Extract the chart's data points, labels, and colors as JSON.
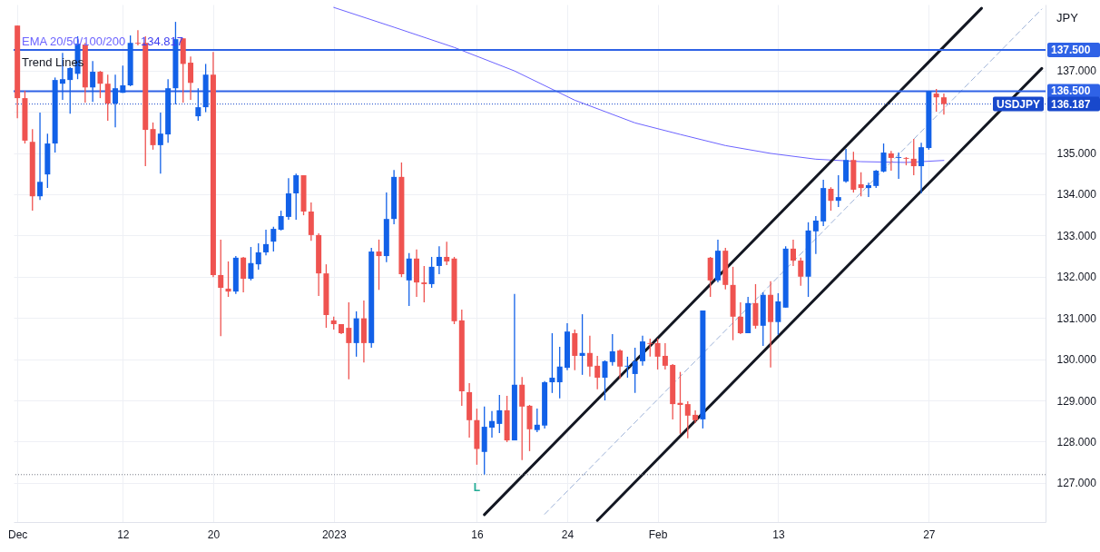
{
  "chart_data": {
    "type": "candlestick",
    "categories": [
      "Dec",
      null,
      null,
      null,
      null,
      null,
      null,
      null,
      null,
      null,
      null,
      null,
      null,
      null,
      "12",
      null,
      null,
      null,
      null,
      null,
      null,
      null,
      null,
      null,
      null,
      null,
      "20",
      null,
      null,
      null,
      null,
      null,
      null,
      null,
      null,
      null,
      null,
      null,
      null,
      null,
      null,
      null,
      "2023",
      null,
      null,
      null,
      null,
      null,
      null,
      null,
      null,
      null,
      null,
      null,
      null,
      null,
      null,
      null,
      null,
      null,
      null,
      "16",
      null,
      null,
      null,
      null,
      null,
      null,
      null,
      null,
      null,
      null,
      null,
      "24",
      null,
      null,
      null,
      null,
      null,
      null,
      null,
      null,
      null,
      null,
      null,
      "Feb",
      null,
      null,
      null,
      null,
      null,
      null,
      null,
      null,
      null,
      null,
      null,
      null,
      null,
      null,
      null,
      "13",
      null,
      null,
      null,
      null,
      null,
      null,
      null,
      null,
      null,
      null,
      null,
      null,
      null,
      null,
      null,
      null,
      null,
      null,
      null,
      "27",
      null,
      null,
      null,
      null,
      null,
      null,
      null,
      null,
      null,
      null,
      null,
      null,
      null,
      null,
      null
    ],
    "ohlc": [
      [
        138.09,
        138.09,
        135.84,
        136.33
      ],
      [
        136.33,
        136.51,
        135.23,
        135.3
      ],
      [
        135.27,
        135.58,
        133.6,
        133.95
      ],
      [
        133.95,
        135.98,
        133.86,
        134.3
      ],
      [
        134.48,
        135.47,
        134.15,
        135.23
      ],
      [
        135.23,
        136.83,
        135.01,
        136.77
      ],
      [
        136.68,
        137.43,
        136.29,
        136.79
      ],
      [
        136.77,
        137.08,
        135.95,
        137.06
      ],
      [
        136.92,
        137.83,
        136.79,
        137.65
      ],
      [
        137.63,
        137.67,
        136.22,
        136.59
      ],
      [
        136.59,
        137.23,
        136.24,
        136.97
      ],
      [
        136.97,
        136.99,
        136.33,
        136.68
      ],
      [
        136.68,
        136.9,
        135.78,
        136.2
      ],
      [
        136.2,
        136.9,
        135.62,
        136.57
      ],
      [
        136.46,
        137.12,
        136.46,
        136.64
      ],
      [
        136.64,
        137.85,
        136.62,
        137.67
      ],
      [
        137.67,
        137.98,
        137.61,
        137.65
      ],
      [
        137.67,
        137.83,
        134.68,
        135.56
      ],
      [
        135.58,
        135.74,
        135.08,
        135.19
      ],
      [
        135.19,
        135.98,
        134.5,
        135.47
      ],
      [
        135.45,
        136.79,
        135.25,
        136.57
      ],
      [
        136.57,
        138.18,
        136.18,
        137.76
      ],
      [
        137.78,
        137.78,
        136.22,
        137.16
      ],
      [
        137.19,
        137.34,
        136.29,
        136.7
      ],
      [
        135.89,
        136.57,
        135.78,
        136.11
      ],
      [
        136.11,
        137.16,
        135.99,
        136.9
      ],
      [
        136.9,
        137.45,
        131.99,
        132.04
      ],
      [
        132.04,
        132.9,
        130.56,
        131.73
      ],
      [
        131.71,
        132.37,
        131.51,
        131.64
      ],
      [
        131.64,
        132.5,
        131.58,
        132.46
      ],
      [
        132.46,
        132.48,
        131.62,
        131.95
      ],
      [
        131.95,
        132.72,
        131.91,
        132.33
      ],
      [
        132.3,
        132.81,
        132.17,
        132.59
      ],
      [
        132.59,
        133.14,
        132.52,
        132.79
      ],
      [
        132.85,
        133.21,
        132.61,
        133.16
      ],
      [
        133.14,
        133.6,
        133.12,
        133.47
      ],
      [
        133.45,
        134.39,
        133.38,
        134.02
      ],
      [
        134.02,
        134.5,
        133.38,
        134.46
      ],
      [
        134.46,
        134.46,
        133.49,
        133.58
      ],
      [
        133.58,
        133.8,
        132.87,
        133.01
      ],
      [
        133.01,
        133.05,
        131.53,
        132.08
      ],
      [
        132.08,
        132.3,
        130.76,
        131.07
      ],
      [
        130.94,
        131.03,
        130.72,
        130.85
      ],
      [
        130.85,
        130.85,
        130.61,
        130.63
      ],
      [
        130.76,
        131.38,
        129.51,
        130.39
      ],
      [
        130.39,
        131.16,
        130.06,
        130.99
      ],
      [
        130.99,
        131.42,
        129.92,
        130.39
      ],
      [
        130.39,
        132.7,
        130.28,
        132.61
      ],
      [
        132.61,
        132.9,
        131.68,
        132.5
      ],
      [
        132.5,
        134.04,
        132.35,
        133.4
      ],
      [
        133.4,
        134.59,
        133.27,
        134.42
      ],
      [
        134.42,
        134.77,
        131.99,
        132.06
      ],
      [
        131.91,
        132.57,
        131.29,
        132.44
      ],
      [
        132.44,
        132.66,
        131.51,
        131.86
      ],
      [
        131.86,
        132.26,
        131.38,
        131.82
      ],
      [
        131.82,
        132.48,
        131.73,
        132.24
      ],
      [
        132.26,
        132.74,
        132.06,
        132.48
      ],
      [
        132.48,
        132.85,
        132.28,
        132.37
      ],
      [
        132.44,
        132.48,
        130.85,
        130.92
      ],
      [
        130.94,
        131.2,
        128.87,
        129.22
      ],
      [
        129.2,
        129.42,
        128.1,
        128.52
      ],
      [
        128.52,
        128.8,
        127.44,
        127.82
      ],
      [
        127.75,
        128.85,
        127.2,
        128.36
      ],
      [
        128.34,
        128.74,
        128.1,
        128.5
      ],
      [
        128.43,
        129.13,
        128.21,
        128.76
      ],
      [
        128.76,
        129.11,
        127.99,
        128.03
      ],
      [
        128.03,
        131.58,
        128.03,
        129.38
      ],
      [
        129.38,
        129.57,
        127.55,
        128.85
      ],
      [
        128.87,
        128.89,
        127.77,
        128.3
      ],
      [
        128.28,
        128.8,
        128.23,
        128.41
      ],
      [
        128.39,
        129.47,
        128.32,
        129.44
      ],
      [
        129.44,
        130.63,
        129.18,
        129.55
      ],
      [
        129.44,
        130.3,
        129.05,
        129.82
      ],
      [
        129.79,
        130.87,
        129.73,
        130.67
      ],
      [
        130.63,
        130.72,
        129.73,
        130.08
      ],
      [
        130.08,
        131.09,
        129.62,
        130.15
      ],
      [
        130.15,
        130.57,
        129.58,
        129.82
      ],
      [
        129.84,
        130.08,
        129.27,
        129.55
      ],
      [
        129.55,
        129.97,
        129.0,
        129.95
      ],
      [
        129.93,
        130.61,
        129.84,
        130.19
      ],
      [
        130.21,
        130.24,
        129.53,
        129.82
      ],
      [
        129.82,
        130.06,
        129.55,
        129.84
      ],
      [
        129.64,
        130.28,
        129.18,
        129.95
      ],
      [
        129.95,
        130.57,
        129.84,
        130.43
      ],
      [
        130.39,
        130.5,
        130.06,
        130.37
      ],
      [
        130.39,
        130.5,
        129.75,
        130.06
      ],
      [
        130.08,
        130.39,
        129.75,
        129.84
      ],
      [
        129.86,
        129.88,
        128.54,
        128.91
      ],
      [
        128.94,
        129.69,
        128.19,
        128.89
      ],
      [
        128.91,
        128.98,
        128.08,
        128.63
      ],
      [
        128.65,
        128.76,
        128.45,
        128.52
      ],
      [
        128.54,
        131.18,
        128.32,
        131.18
      ],
      [
        132.46,
        132.48,
        131.51,
        131.91
      ],
      [
        131.91,
        132.9,
        131.86,
        132.63
      ],
      [
        132.63,
        132.7,
        131.69,
        131.8
      ],
      [
        131.8,
        132.24,
        130.46,
        131.03
      ],
      [
        131.03,
        131.38,
        130.61,
        130.63
      ],
      [
        130.63,
        131.51,
        130.63,
        131.36
      ],
      [
        131.36,
        131.82,
        130.74,
        130.81
      ],
      [
        130.81,
        131.62,
        130.32,
        131.56
      ],
      [
        131.56,
        131.89,
        129.8,
        130.9
      ],
      [
        130.9,
        131.6,
        130.59,
        131.4
      ],
      [
        131.25,
        132.74,
        131.25,
        132.68
      ],
      [
        132.68,
        132.9,
        132.26,
        132.39
      ],
      [
        132.39,
        132.46,
        131.78,
        132.0
      ],
      [
        132.0,
        133.32,
        131.51,
        133.12
      ],
      [
        133.1,
        133.47,
        132.55,
        133.36
      ],
      [
        133.34,
        134.35,
        133.23,
        134.15
      ],
      [
        134.13,
        134.17,
        133.6,
        133.84
      ],
      [
        133.84,
        134.46,
        133.69,
        133.93
      ],
      [
        134.31,
        135.1,
        134.28,
        134.83
      ],
      [
        134.83,
        135.03,
        134.04,
        134.11
      ],
      [
        134.24,
        134.53,
        133.95,
        134.15
      ],
      [
        134.15,
        134.28,
        133.93,
        134.22
      ],
      [
        134.2,
        134.59,
        134.15,
        134.57
      ],
      [
        134.55,
        135.23,
        134.53,
        135.01
      ],
      [
        134.99,
        135.05,
        134.57,
        134.88
      ],
      [
        134.88,
        135.01,
        134.37,
        134.9
      ],
      [
        134.88,
        134.9,
        134.7,
        134.86
      ],
      [
        134.86,
        135.34,
        134.46,
        134.68
      ],
      [
        134.68,
        135.25,
        134.02,
        135.14
      ],
      [
        135.12,
        136.5,
        135.08,
        136.5
      ],
      [
        136.44,
        136.55,
        136.0,
        136.35
      ],
      [
        136.35,
        136.44,
        135.93,
        136.187
      ],
      null,
      null,
      null,
      null,
      null,
      null,
      null,
      null,
      null,
      null,
      null,
      null,
      null
    ],
    "colors": [
      "#ef5350",
      "#ef5350",
      "#ef5350",
      "#1261e8",
      "#1261e8",
      "#1261e8",
      "#1261e8",
      "#1261e8",
      "#1261e8",
      "#ef5350",
      "#1261e8",
      "#ef5350",
      "#ef5350",
      "#1261e8",
      "#1261e8",
      "#1261e8",
      "#ef5350",
      "#ef5350",
      "#ef5350",
      "#1261e8",
      "#1261e8",
      "#1261e8",
      "#ef5350",
      "#ef5350",
      "#1261e8",
      "#1261e8",
      "#ef5350",
      "#ef5350",
      "#ef5350",
      "#1261e8",
      "#ef5350",
      "#1261e8",
      "#1261e8",
      "#1261e8",
      "#1261e8",
      "#1261e8",
      "#1261e8",
      "#1261e8",
      "#ef5350",
      "#ef5350",
      "#ef5350",
      "#ef5350",
      "#ef5350",
      "#ef5350",
      "#ef5350",
      "#1261e8",
      "#ef5350",
      "#1261e8",
      "#ef5350",
      "#1261e8",
      "#1261e8",
      "#ef5350",
      "#1261e8",
      "#ef5350",
      "#ef5350",
      "#1261e8",
      "#1261e8",
      "#ef5350",
      "#ef5350",
      "#ef5350",
      "#ef5350",
      "#ef5350",
      "#1261e8",
      "#1261e8",
      "#1261e8",
      "#ef5350",
      "#1261e8",
      "#ef5350",
      "#ef5350",
      "#1261e8",
      "#1261e8",
      "#1261e8",
      "#1261e8",
      "#1261e8",
      "#ef5350",
      "#1261e8",
      "#ef5350",
      "#ef5350",
      "#1261e8",
      "#1261e8",
      "#ef5350",
      "#1261e8",
      "#1261e8",
      "#1261e8",
      "#ef5350",
      "#ef5350",
      "#ef5350",
      "#ef5350",
      "#ef5350",
      "#ef5350",
      "#ef5350",
      "#1261e8",
      "#ef5350",
      "#1261e8",
      "#ef5350",
      "#ef5350",
      "#ef5350",
      "#1261e8",
      "#ef5350",
      "#1261e8",
      "#ef5350",
      "#1261e8",
      "#1261e8",
      "#ef5350",
      "#ef5350",
      "#1261e8",
      "#1261e8",
      "#1261e8",
      "#ef5350",
      "#1261e8",
      "#1261e8",
      "#ef5350",
      "#ef5350",
      "#1261e8",
      "#1261e8",
      "#1261e8",
      "#ef5350",
      "#1261e8",
      "#ef5350",
      "#ef5350",
      "#1261e8",
      "#1261e8",
      "#ef5350",
      "#ef5350",
      null,
      null,
      null,
      null,
      null,
      null,
      null,
      null,
      null,
      null,
      null,
      null,
      null
    ],
    "series": [
      {
        "type": "line",
        "name": "EMA 20/50/100/200",
        "color": "#6c63ff",
        "values": [
          null,
          null,
          null,
          null,
          null,
          null,
          null,
          null,
          null,
          null,
          null,
          null,
          null,
          null,
          null,
          null,
          null,
          null,
          null,
          null,
          null,
          null,
          null,
          null,
          null,
          null,
          null,
          null,
          null,
          null,
          null,
          null,
          null,
          null,
          null,
          null,
          null,
          null,
          null,
          null,
          null,
          null,
          138.53,
          null,
          null,
          null,
          null,
          null,
          null,
          null,
          138.05,
          null,
          null,
          null,
          null,
          null,
          null,
          null,
          137.56,
          null,
          null,
          null,
          null,
          null,
          null,
          null,
          136.99,
          null,
          null,
          null,
          null,
          null,
          null,
          null,
          136.28,
          null,
          null,
          null,
          null,
          null,
          null,
          null,
          135.73,
          null,
          null,
          null,
          null,
          null,
          135.45,
          null,
          null,
          null,
          null,
          null,
          135.18,
          null,
          null,
          null,
          null,
          null,
          134.99,
          null,
          null,
          null,
          null,
          null,
          134.85,
          null,
          null,
          null,
          null,
          null,
          134.79,
          null,
          null,
          null,
          null,
          null,
          134.77,
          null,
          null,
          null,
          null,
          134.82,
          null,
          null,
          null,
          null,
          null,
          null,
          null,
          null,
          null,
          null,
          null,
          null,
          null
        ]
      },
      {
        "type": "line",
        "color": "#131722",
        "values": [
          null,
          null,
          null,
          null,
          null,
          null,
          null,
          null,
          null,
          null,
          null,
          null,
          null,
          null,
          null,
          null,
          null,
          null,
          null,
          null,
          null,
          null,
          null,
          null,
          null,
          null,
          null,
          null,
          null,
          null,
          null,
          null,
          null,
          null,
          null,
          null,
          null,
          null,
          null,
          null,
          null,
          null,
          null,
          null,
          null,
          null,
          null,
          null,
          null,
          null,
          null,
          null,
          null,
          null,
          null,
          null,
          null,
          null,
          null,
          null,
          null,
          null,
          126.23,
          null,
          null,
          null,
          null,
          null,
          null,
          null,
          null,
          null,
          null,
          null,
          null,
          null,
          null,
          null,
          null,
          null,
          null,
          null,
          null,
          null,
          null,
          null,
          null,
          null,
          null,
          null,
          null,
          null,
          null,
          null,
          null,
          null,
          null,
          null,
          null,
          null,
          null,
          null,
          null,
          null,
          null,
          null,
          null,
          null,
          null,
          null,
          null,
          null,
          null,
          null,
          null,
          null,
          null,
          null,
          null,
          null,
          null,
          null,
          null,
          null,
          null,
          null,
          null,
          null,
          138.51,
          null,
          null,
          null,
          null,
          null,
          null,
          null,
          null
        ]
      },
      {
        "type": "line",
        "color": "#9db2d8",
        "line_style": "dashed",
        "values": [
          null,
          null,
          null,
          null,
          null,
          null,
          null,
          null,
          null,
          null,
          null,
          null,
          null,
          null,
          null,
          null,
          null,
          null,
          null,
          null,
          null,
          null,
          null,
          null,
          null,
          null,
          null,
          null,
          null,
          null,
          null,
          null,
          null,
          null,
          null,
          null,
          null,
          null,
          null,
          null,
          null,
          null,
          null,
          null,
          null,
          null,
          null,
          null,
          null,
          null,
          null,
          null,
          null,
          null,
          null,
          null,
          null,
          null,
          null,
          null,
          null,
          null,
          null,
          null,
          null,
          null,
          null,
          null,
          null,
          null,
          126.24,
          null,
          null,
          null,
          null,
          null,
          null,
          null,
          null,
          null,
          null,
          null,
          null,
          null,
          null,
          null,
          null,
          null,
          null,
          null,
          null,
          null,
          null,
          null,
          null,
          null,
          null,
          null,
          null,
          null,
          null,
          null,
          null,
          null,
          null,
          null,
          null,
          null,
          null,
          null,
          null,
          null,
          null,
          null,
          null,
          null,
          null,
          null,
          null,
          null,
          null,
          null,
          null,
          null,
          null,
          null,
          null,
          null,
          null,
          null,
          null,
          null,
          null,
          null,
          null,
          null,
          138.49
        ]
      },
      {
        "type": "line",
        "color": "#131722",
        "values": [
          null,
          null,
          null,
          null,
          null,
          null,
          null,
          null,
          null,
          null,
          null,
          null,
          null,
          null,
          null,
          null,
          null,
          null,
          null,
          null,
          null,
          null,
          null,
          null,
          null,
          null,
          null,
          null,
          null,
          null,
          null,
          null,
          null,
          null,
          null,
          null,
          null,
          null,
          null,
          null,
          null,
          null,
          null,
          null,
          null,
          null,
          null,
          null,
          null,
          null,
          null,
          null,
          null,
          null,
          null,
          null,
          null,
          null,
          null,
          null,
          null,
          null,
          null,
          null,
          null,
          null,
          null,
          null,
          null,
          null,
          null,
          null,
          null,
          null,
          null,
          null,
          null,
          126.09,
          null,
          null,
          null,
          null,
          null,
          null,
          null,
          null,
          null,
          null,
          null,
          null,
          null,
          null,
          null,
          null,
          null,
          null,
          null,
          null,
          null,
          null,
          null,
          null,
          null,
          null,
          null,
          null,
          null,
          null,
          null,
          null,
          null,
          null,
          null,
          null,
          null,
          null,
          null,
          null,
          null,
          null,
          null,
          null,
          null,
          null,
          null,
          null,
          null,
          null,
          null,
          null,
          null,
          null,
          null,
          null,
          null,
          null,
          137.05
        ]
      }
    ],
    "ylim": [
      126.05,
      138.6
    ],
    "yticks": [
      {
        "value": 127,
        "label": "127.000"
      },
      {
        "value": 128,
        "label": "128.000"
      },
      {
        "value": 129,
        "label": "129.000"
      },
      {
        "value": 130,
        "label": "130.000"
      },
      {
        "value": 131,
        "label": "131.000"
      },
      {
        "value": 132,
        "label": "132.000"
      },
      {
        "value": 133,
        "label": "133.000"
      },
      {
        "value": 134,
        "label": "134.000"
      },
      {
        "value": 135,
        "label": "135.000"
      },
      {
        "value": 136,
        "label": null
      },
      {
        "value": 137,
        "label": "137.000"
      }
    ],
    "ref_lines": [
      {
        "axis": "y",
        "value": 137.5,
        "label": "137.500",
        "color": "#2f62e6"
      },
      {
        "axis": "y",
        "value": 136.5,
        "label": "136.500",
        "color": "#2f62e6"
      },
      {
        "axis": "y",
        "value": 136.187,
        "label": "136.187",
        "color": "#1848cc",
        "line_style": "dotted"
      },
      {
        "axis": "y",
        "value": 127.2,
        "color": "#787b86",
        "line_style": "dotted"
      }
    ],
    "annotations": [
      "134.817",
      "Trend Lines",
      {
        "text": "USDJPY",
        "y": 136.187
      },
      "JPY",
      {
        "text": "L",
        "x": "16",
        "y": 127.2
      }
    ],
    "grid": true
  }
}
